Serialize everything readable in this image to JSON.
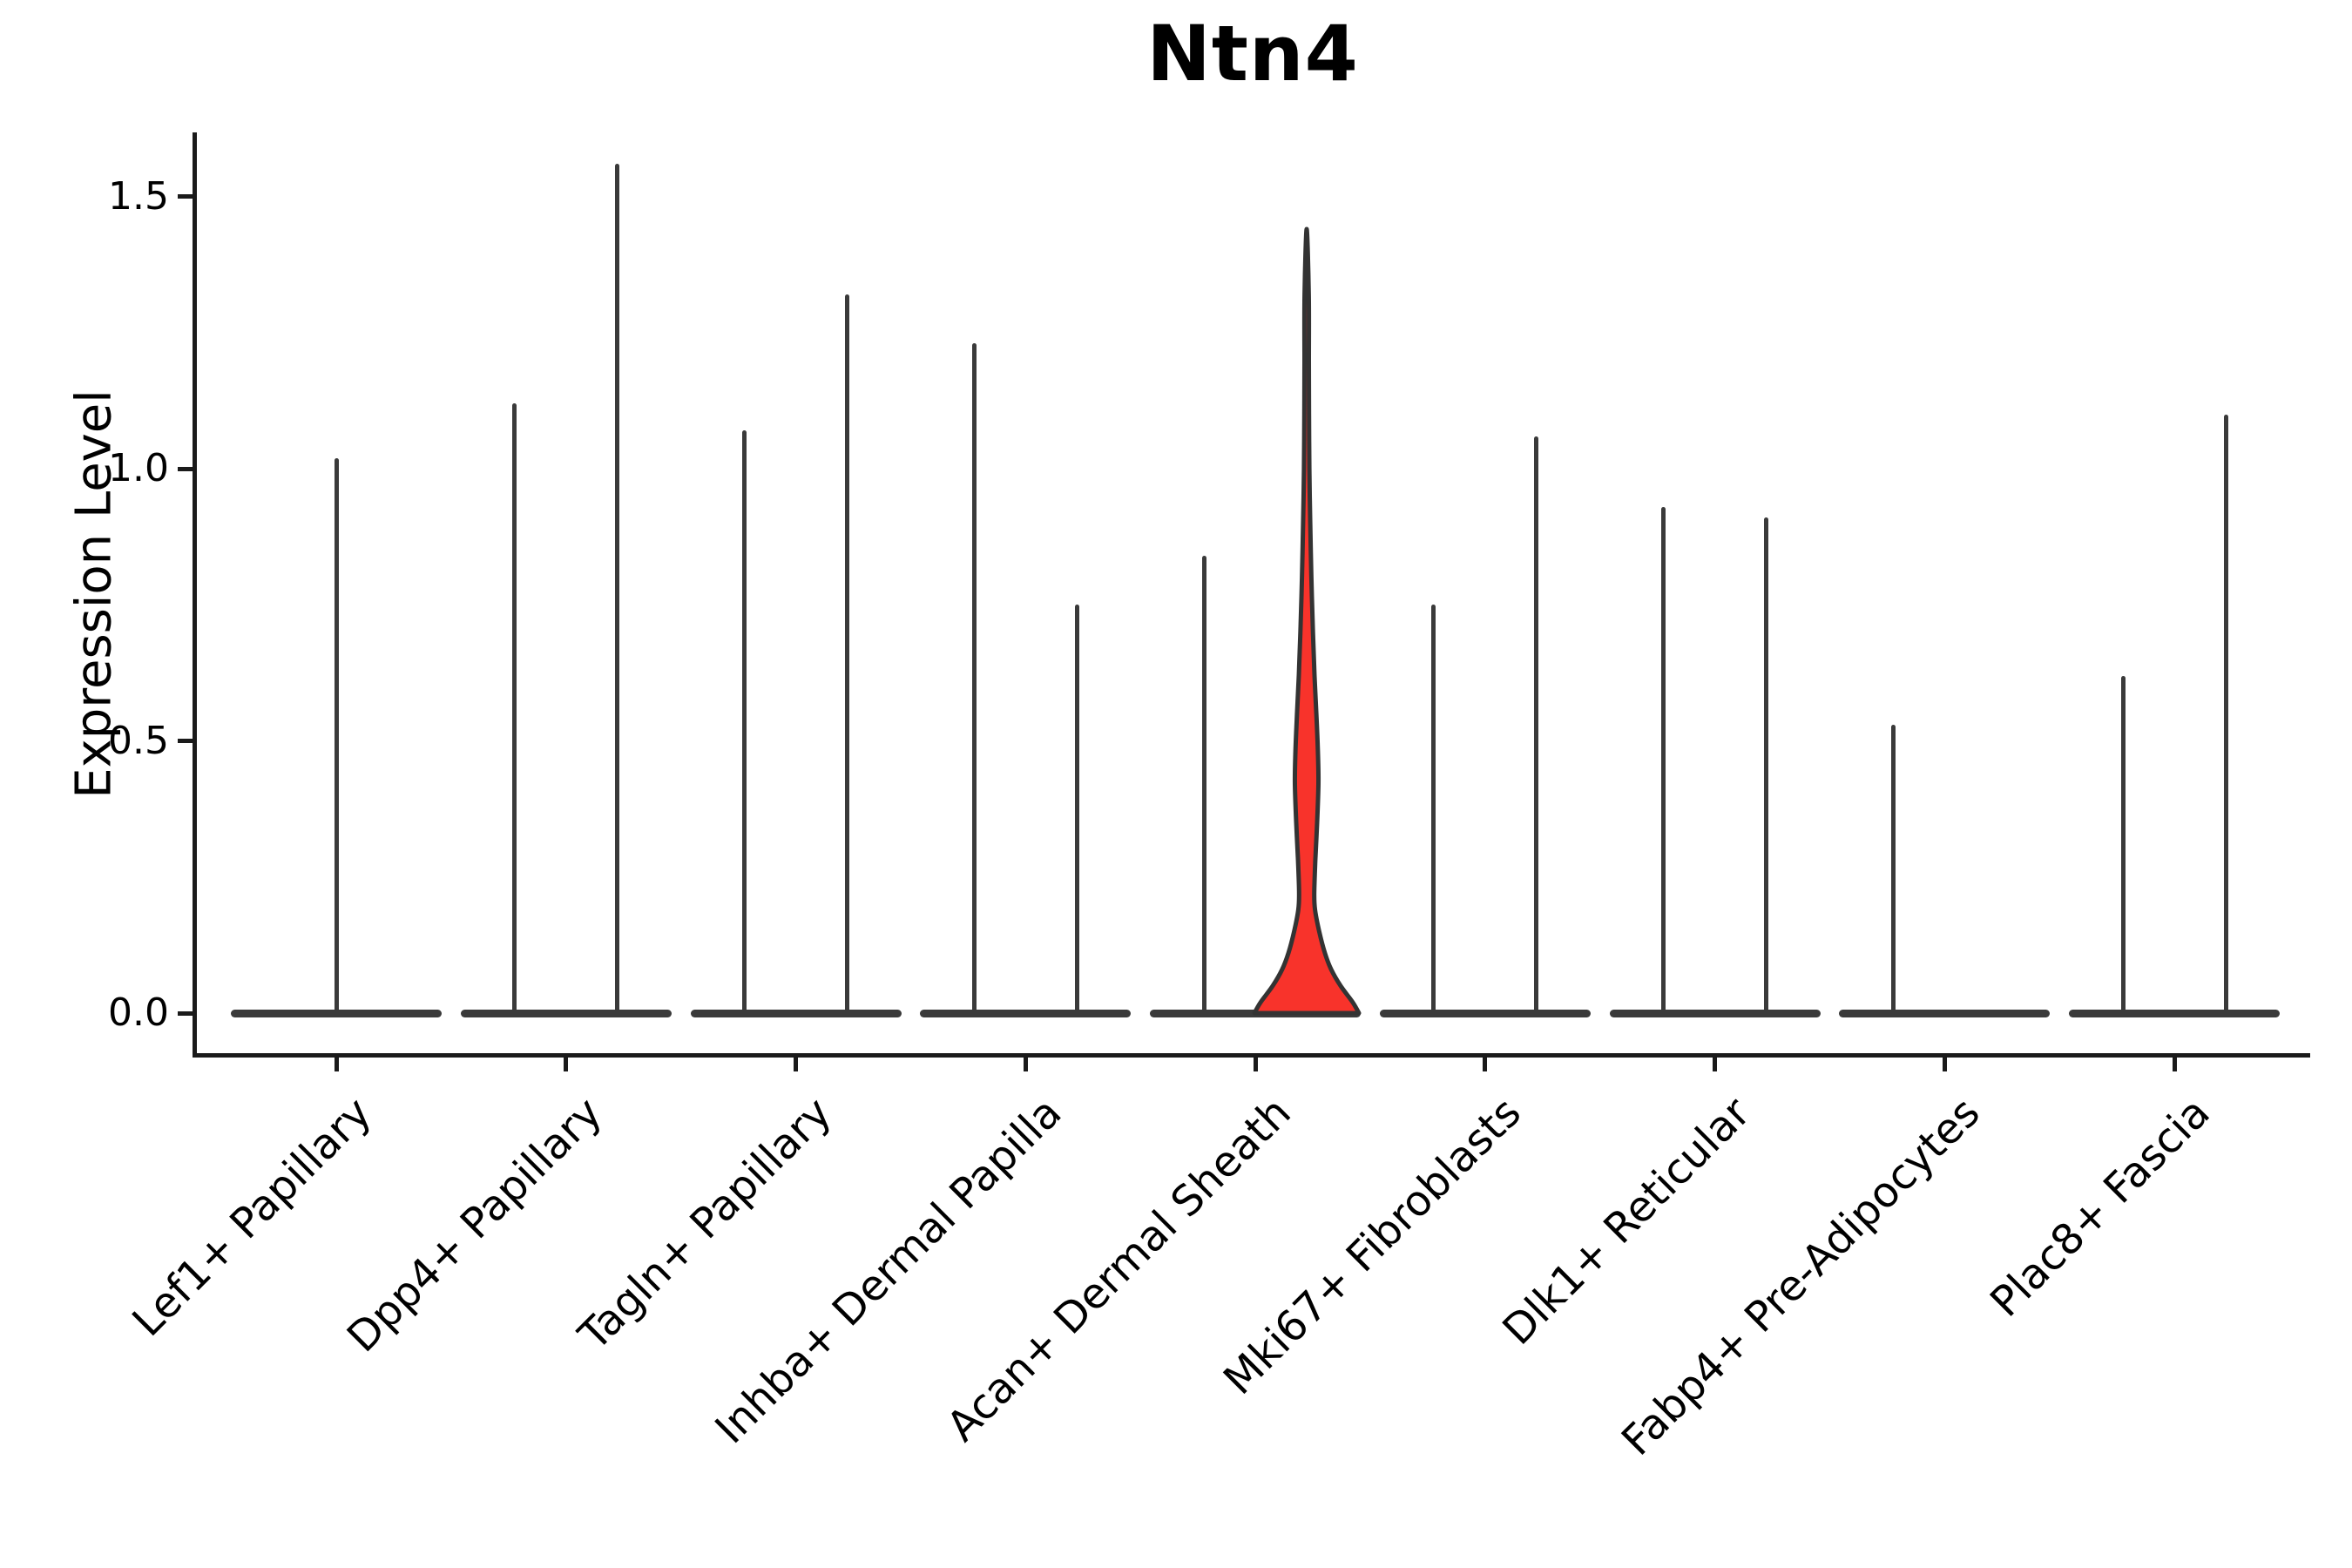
{
  "title": "Ntn4",
  "y_axis": {
    "label": "Expression Level",
    "tick_labels": [
      "0.0",
      "0.5",
      "1.0",
      "1.5"
    ],
    "tick_values": [
      0.0,
      0.5,
      1.0,
      1.5
    ]
  },
  "colors": {
    "highlight_fill": "#f8332b",
    "violin_line": "#3a3a3a",
    "axis": "#1a1a1a",
    "text": "#000000"
  },
  "chart_data": {
    "type": "violin",
    "title": "Ntn4",
    "xlabel": "",
    "ylabel": "Expression Level",
    "ylim": [
      0,
      1.61
    ],
    "yticks": [
      0.0,
      0.5,
      1.0,
      1.5
    ],
    "grid": false,
    "legend": "none",
    "categories": [
      "Lef1+ Papillary",
      "Dpp4+ Papillary",
      "Tagln+ Papillary",
      "Inhba+ Dermal Papilla",
      "Acan+ Dermal Sheath",
      "Mki67+ Fibroblasts",
      "Dlk1+ Reticular",
      "Fabp4+ Pre-Adipocytes",
      "Plac8+ Fascia"
    ],
    "description": "Violin plot of Ntn4 expression per fibroblast cluster. Nearly all violins collapse to a flat base at 0 with thin spikes up to the max expressed cell; most categories show a pair of spikes flanking the tick; only the right violin of Acan+ Dermal Sheath has visible red-filled density.",
    "violins": [
      {
        "category": "Lef1+ Papillary",
        "position": "center",
        "shape": "spike",
        "max_expression": 1.02
      },
      {
        "category": "Dpp4+ Papillary",
        "position": "left",
        "shape": "spike",
        "max_expression": 1.12
      },
      {
        "category": "Dpp4+ Papillary",
        "position": "right",
        "shape": "spike",
        "max_expression": 1.56
      },
      {
        "category": "Tagln+ Papillary",
        "position": "left",
        "shape": "spike",
        "max_expression": 1.07
      },
      {
        "category": "Tagln+ Papillary",
        "position": "right",
        "shape": "spike",
        "max_expression": 1.32
      },
      {
        "category": "Inhba+ Dermal Papilla",
        "position": "left",
        "shape": "spike",
        "max_expression": 1.23
      },
      {
        "category": "Inhba+ Dermal Papilla",
        "position": "right",
        "shape": "spike",
        "max_expression": 0.75
      },
      {
        "category": "Acan+ Dermal Sheath",
        "position": "left",
        "shape": "spike",
        "max_expression": 0.84
      },
      {
        "category": "Acan+ Dermal Sheath",
        "position": "right",
        "shape": "violin",
        "max_expression": 1.44,
        "fill": "#f8332b",
        "density_profile": [
          {
            "v": 0.0,
            "w": 1.0
          },
          {
            "v": 0.02,
            "w": 0.88
          },
          {
            "v": 0.05,
            "w": 0.65
          },
          {
            "v": 0.08,
            "w": 0.47
          },
          {
            "v": 0.11,
            "w": 0.35
          },
          {
            "v": 0.15,
            "w": 0.24
          },
          {
            "v": 0.19,
            "w": 0.16
          },
          {
            "v": 0.22,
            "w": 0.145
          },
          {
            "v": 0.28,
            "w": 0.165
          },
          {
            "v": 0.35,
            "w": 0.2
          },
          {
            "v": 0.42,
            "w": 0.225
          },
          {
            "v": 0.48,
            "w": 0.215
          },
          {
            "v": 0.55,
            "w": 0.185
          },
          {
            "v": 0.62,
            "w": 0.15
          },
          {
            "v": 0.7,
            "w": 0.12
          },
          {
            "v": 0.8,
            "w": 0.09
          },
          {
            "v": 0.9,
            "w": 0.068
          },
          {
            "v": 1.0,
            "w": 0.052
          },
          {
            "v": 1.1,
            "w": 0.045
          },
          {
            "v": 1.2,
            "w": 0.042
          },
          {
            "v": 1.32,
            "w": 0.04
          },
          {
            "v": 1.44,
            "w": 0.0
          }
        ]
      },
      {
        "category": "Mki67+ Fibroblasts",
        "position": "left",
        "shape": "spike",
        "max_expression": 0.75
      },
      {
        "category": "Mki67+ Fibroblasts",
        "position": "right",
        "shape": "spike",
        "max_expression": 1.06
      },
      {
        "category": "Dlk1+ Reticular",
        "position": "left",
        "shape": "spike",
        "max_expression": 0.93
      },
      {
        "category": "Dlk1+ Reticular",
        "position": "right",
        "shape": "spike",
        "max_expression": 0.91
      },
      {
        "category": "Fabp4+ Pre-Adipocytes",
        "position": "left",
        "shape": "spike",
        "max_expression": 0.53
      },
      {
        "category": "Plac8+ Fascia",
        "position": "left",
        "shape": "spike",
        "max_expression": 0.62
      },
      {
        "category": "Plac8+ Fascia",
        "position": "right",
        "shape": "spike",
        "max_expression": 1.1
      }
    ]
  }
}
